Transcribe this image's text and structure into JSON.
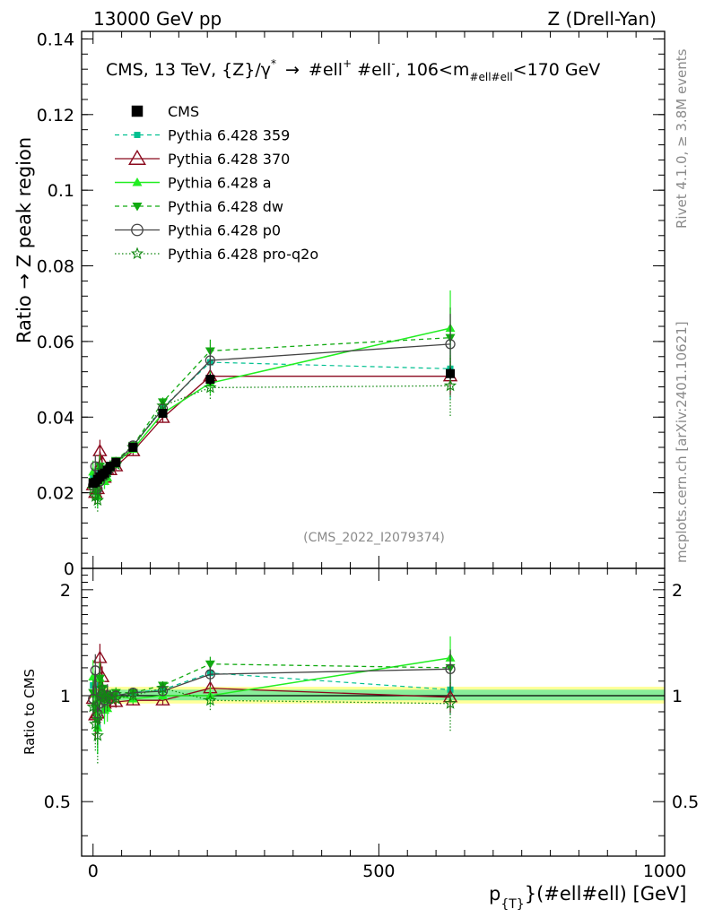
{
  "header": {
    "left": "13000 GeV pp",
    "right": "Z (Drell-Yan)"
  },
  "side": {
    "rivet": "Rivet 4.1.0, ≥ 3.8M events",
    "mcplots": "mcplots.cern.ch [arXiv:2401.10621]"
  },
  "colors": {
    "cms": "#000000",
    "p359": "#00c090",
    "p370": "#8b0a1e",
    "a": "#22ee22",
    "dw": "#11aa11",
    "p0": "#444444",
    "pq2o": "#118811",
    "band_outer": "#ffff99",
    "band_inner": "#88ee99"
  },
  "chart_data": [
    {
      "type": "line",
      "title": "CMS, 13 TeV, {Z}/γ* → #ell⁺ #ell⁻, 106<m_{#ell#ell}<170 GeV",
      "title_parts": {
        "main": "CMS, 13 TeV, {Z}/γ",
        "sup1": "*",
        "arrow": "→",
        "ell": "#ell",
        "sup2": "+",
        "ell2": "#ell",
        "sup3": "-",
        "mid": ", 106<m",
        "sub": "#ell#ell",
        "tail": "<170 GeV"
      },
      "ylabel": "Ratio → Z peak region",
      "watermark": "(CMS_2022_I2079374)",
      "xlim": [
        -20,
        1000
      ],
      "ylim": [
        0,
        0.142
      ],
      "yticks": [
        0,
        0.02,
        0.04,
        0.06,
        0.08,
        0.1,
        0.12,
        0.14
      ],
      "ytick_labels": [
        "0",
        "0.02",
        "0.04",
        "0.06",
        "0.08",
        "0.1",
        "0.12",
        "0.14"
      ],
      "x": [
        0,
        4,
        8,
        12,
        16,
        20,
        25,
        30,
        40,
        70,
        122,
        205,
        625
      ],
      "series": [
        {
          "name": "CMS",
          "key": "cms",
          "values": [
            0.0225,
            0.0228,
            0.0235,
            0.0242,
            0.0248,
            0.0252,
            0.026,
            0.027,
            0.028,
            0.032,
            0.041,
            0.05,
            0.0515
          ],
          "errors": [
            0.001,
            0.001,
            0.001,
            0.001,
            0.001,
            0.001,
            0.001,
            0.001,
            0.001,
            0.001,
            0.001,
            0.0015,
            0.0015
          ]
        },
        {
          "name": "Pythia 6.428 359",
          "key": "p359",
          "values": [
            0.024,
            0.021,
            0.019,
            0.026,
            0.025,
            0.023,
            0.025,
            0.027,
            0.028,
            0.0325,
            0.0425,
            0.0545,
            0.0528
          ],
          "errors": [
            0.002,
            0.003,
            0.003,
            0.003,
            0.002,
            0.002,
            0.002,
            0.001,
            0.001,
            0.001,
            0.0012,
            0.003,
            0.008
          ]
        },
        {
          "name": "Pythia 6.428 370",
          "key": "p370",
          "values": [
            0.022,
            0.02,
            0.021,
            0.031,
            0.028,
            0.024,
            0.026,
            0.026,
            0.027,
            0.031,
            0.0398,
            0.0508,
            0.0508
          ],
          "errors": [
            0.002,
            0.003,
            0.003,
            0.003,
            0.002,
            0.002,
            0.002,
            0.001,
            0.001,
            0.001,
            0.0012,
            0.003,
            0.005
          ]
        },
        {
          "name": "Pythia 6.428 a",
          "key": "a",
          "values": [
            0.0255,
            0.023,
            0.019,
            0.027,
            0.024,
            0.023,
            0.024,
            0.027,
            0.028,
            0.0315,
            0.041,
            0.049,
            0.0635
          ],
          "errors": [
            0.003,
            0.003,
            0.003,
            0.003,
            0.002,
            0.002,
            0.002,
            0.001,
            0.001,
            0.001,
            0.0012,
            0.003,
            0.01
          ]
        },
        {
          "name": "Pythia 6.428 dw",
          "key": "dw",
          "values": [
            0.023,
            0.021,
            0.02,
            0.027,
            0.026,
            0.025,
            0.0255,
            0.027,
            0.0285,
            0.0325,
            0.044,
            0.0575,
            0.061
          ],
          "errors": [
            0.002,
            0.003,
            0.003,
            0.003,
            0.002,
            0.002,
            0.002,
            0.001,
            0.001,
            0.001,
            0.0012,
            0.003,
            0.008
          ]
        },
        {
          "name": "Pythia 6.428 p0",
          "key": "p0",
          "values": [
            0.022,
            0.027,
            0.021,
            0.023,
            0.025,
            0.0245,
            0.026,
            0.0265,
            0.028,
            0.0325,
            0.0422,
            0.055,
            0.0593
          ],
          "errors": [
            0.002,
            0.003,
            0.003,
            0.003,
            0.002,
            0.002,
            0.002,
            0.001,
            0.001,
            0.001,
            0.0012,
            0.003,
            0.008
          ]
        },
        {
          "name": "Pythia 6.428 pro-q2o",
          "key": "pq2o",
          "values": [
            0.021,
            0.019,
            0.018,
            0.024,
            0.026,
            0.025,
            0.0255,
            0.027,
            0.0275,
            0.032,
            0.043,
            0.0478,
            0.0483
          ],
          "errors": [
            0.002,
            0.003,
            0.003,
            0.003,
            0.002,
            0.002,
            0.002,
            0.001,
            0.001,
            0.001,
            0.0012,
            0.003,
            0.008
          ]
        }
      ]
    },
    {
      "type": "line",
      "ylabel": "Ratio to CMS",
      "xlabel": "p_{T}(#ell#ell) [GeV]",
      "xlabel_parts": {
        "p": "p",
        "sub": "{T}",
        "rest": "}(#ell#ell) [GeV]"
      },
      "xlim": [
        -20,
        1000
      ],
      "ylim": [
        0.35,
        2.3
      ],
      "yticks": [
        0.5,
        1,
        2
      ],
      "ytick_labels": [
        "0.5",
        "1",
        "2"
      ],
      "xticks": [
        0,
        500,
        1000
      ],
      "xtick_labels": [
        "0",
        "500",
        "1000"
      ],
      "band": {
        "x_from": 0,
        "x_to": 1000,
        "outer": [
          0.95,
          1.06
        ],
        "inner": [
          0.97,
          1.04
        ]
      },
      "x": [
        0,
        4,
        8,
        12,
        16,
        20,
        25,
        30,
        40,
        70,
        122,
        205,
        625
      ],
      "series": [
        {
          "name": "Pythia 6.428 359",
          "key": "p359",
          "values": [
            1.07,
            0.92,
            0.81,
            1.07,
            1.01,
            0.91,
            0.96,
            1.0,
            1.0,
            1.02,
            1.04,
            1.16,
            1.04
          ]
        },
        {
          "name": "Pythia 6.428 370",
          "key": "p370",
          "values": [
            0.98,
            0.88,
            0.89,
            1.28,
            1.13,
            0.95,
            1.0,
            0.96,
            0.96,
            0.97,
            0.97,
            1.05,
            0.99
          ]
        },
        {
          "name": "Pythia 6.428 a",
          "key": "a",
          "values": [
            1.13,
            1.01,
            0.81,
            1.12,
            0.97,
            0.91,
            0.92,
            1.0,
            1.0,
            0.98,
            1.0,
            1.0,
            1.28
          ]
        },
        {
          "name": "Pythia 6.428 dw",
          "key": "dw",
          "values": [
            1.02,
            0.92,
            0.85,
            1.12,
            1.05,
            0.99,
            0.98,
            1.0,
            1.02,
            1.02,
            1.07,
            1.23,
            1.2
          ]
        },
        {
          "name": "Pythia 6.428 p0",
          "key": "p0",
          "values": [
            0.98,
            1.18,
            0.89,
            0.95,
            1.01,
            0.97,
            1.0,
            0.98,
            1.0,
            1.02,
            1.03,
            1.15,
            1.19
          ]
        },
        {
          "name": "Pythia 6.428 pro-q2o",
          "key": "pq2o",
          "values": [
            0.93,
            0.83,
            0.77,
            0.99,
            1.05,
            0.99,
            0.98,
            1.0,
            0.98,
            1.0,
            1.05,
            0.97,
            0.95
          ]
        }
      ]
    }
  ]
}
